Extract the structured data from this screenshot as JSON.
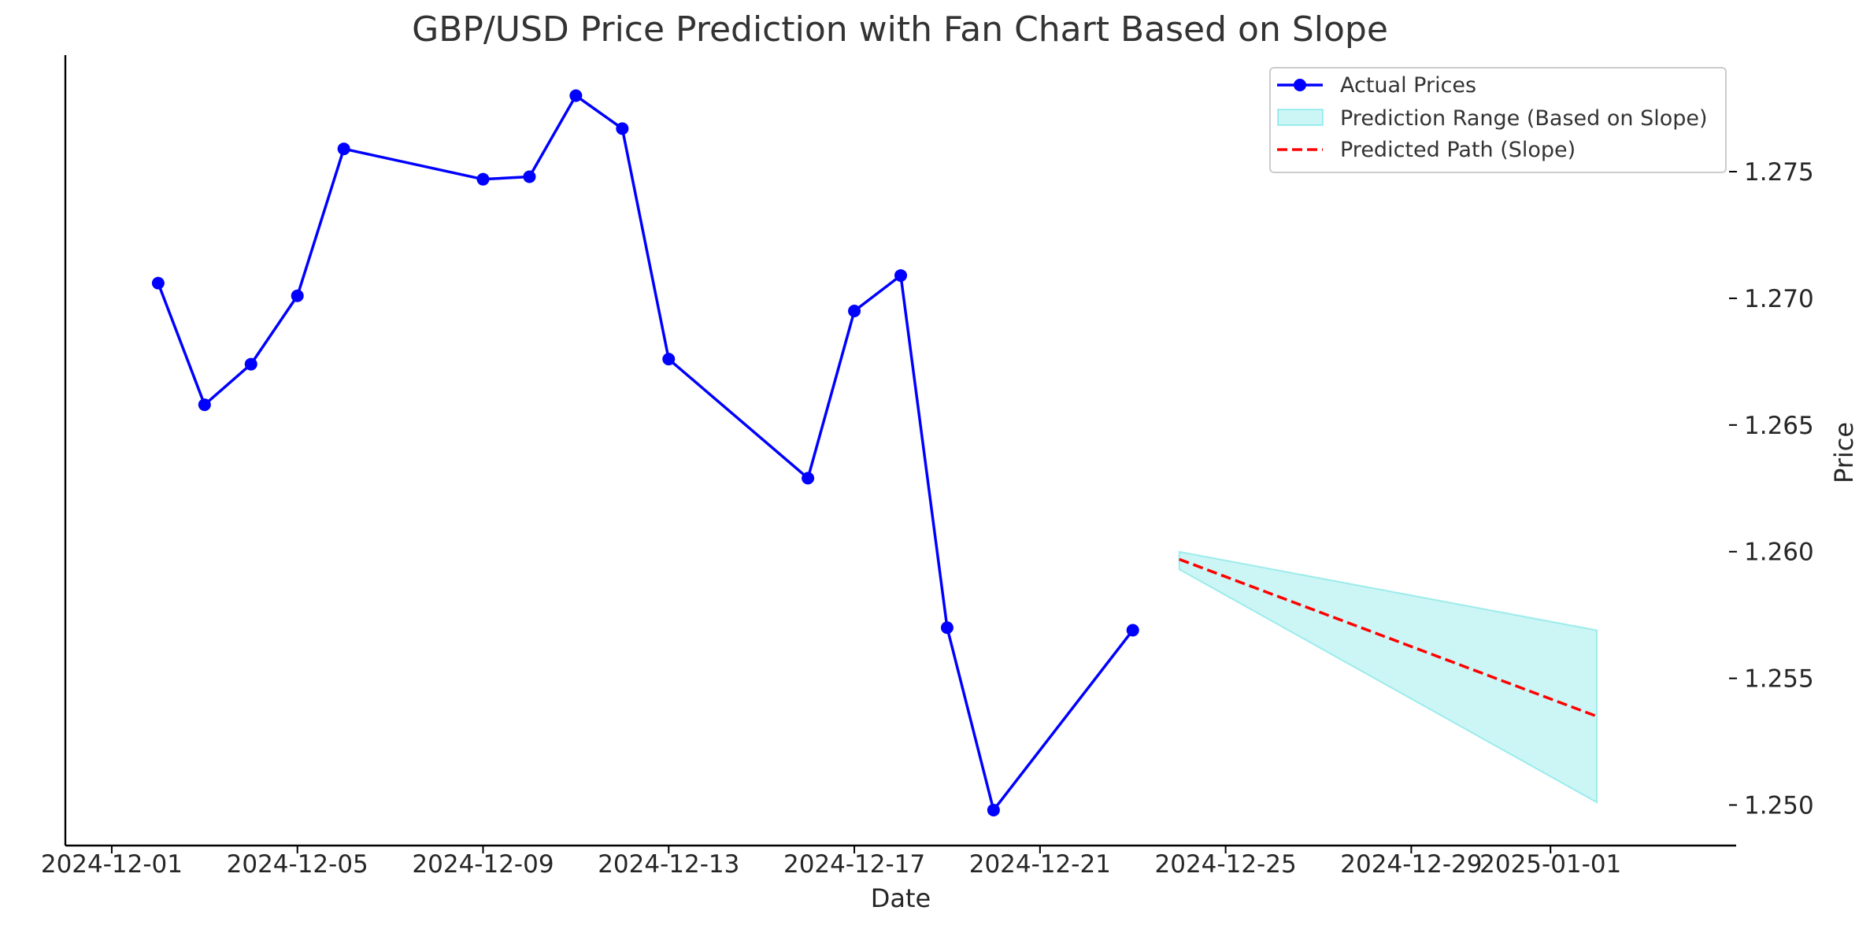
{
  "chart_data": {
    "type": "line",
    "title": "GBP/USD Price Prediction with Fan Chart Based on Slope",
    "xlabel": "Date",
    "ylabel": "Price",
    "x_axis_type": "date",
    "xlim": [
      "2024-11-30",
      "2025-01-05"
    ],
    "ylim": [
      1.2484,
      1.2796
    ],
    "y_axis_side": "right",
    "grid": false,
    "legend_position": "top-right",
    "x_ticks": [
      {
        "date": "2024-12-01",
        "label": "2024-12-01"
      },
      {
        "date": "2024-12-05",
        "label": "2024-12-05"
      },
      {
        "date": "2024-12-09",
        "label": "2024-12-09"
      },
      {
        "date": "2024-12-13",
        "label": "2024-12-13"
      },
      {
        "date": "2024-12-17",
        "label": "2024-12-17"
      },
      {
        "date": "2024-12-21",
        "label": "2024-12-21"
      },
      {
        "date": "2024-12-25",
        "label": "2024-12-25"
      },
      {
        "date": "2024-12-29",
        "label": "2024-12-29"
      },
      {
        "date": "2025-01-01",
        "label": "2025-01-01"
      }
    ],
    "y_ticks": [
      {
        "value": 1.25,
        "label": "1.250"
      },
      {
        "value": 1.255,
        "label": "1.255"
      },
      {
        "value": 1.26,
        "label": "1.260"
      },
      {
        "value": 1.265,
        "label": "1.265"
      },
      {
        "value": 1.27,
        "label": "1.270"
      },
      {
        "value": 1.275,
        "label": "1.275"
      }
    ],
    "series": [
      {
        "name": "Actual Prices",
        "kind": "line-marker",
        "color": "#0000ff",
        "points": [
          {
            "x": "2024-12-02",
            "y": 1.2706
          },
          {
            "x": "2024-12-03",
            "y": 1.2658
          },
          {
            "x": "2024-12-04",
            "y": 1.2674
          },
          {
            "x": "2024-12-05",
            "y": 1.2701
          },
          {
            "x": "2024-12-06",
            "y": 1.2759
          },
          {
            "x": "2024-12-09",
            "y": 1.2747
          },
          {
            "x": "2024-12-10",
            "y": 1.2748
          },
          {
            "x": "2024-12-11",
            "y": 1.278
          },
          {
            "x": "2024-12-12",
            "y": 1.2767
          },
          {
            "x": "2024-12-13",
            "y": 1.2676
          },
          {
            "x": "2024-12-16",
            "y": 1.2629
          },
          {
            "x": "2024-12-17",
            "y": 1.2695
          },
          {
            "x": "2024-12-18",
            "y": 1.2709
          },
          {
            "x": "2024-12-19",
            "y": 1.257
          },
          {
            "x": "2024-12-20",
            "y": 1.2498
          },
          {
            "x": "2024-12-23",
            "y": 1.2569
          }
        ]
      },
      {
        "name": "Prediction Range (Based on Slope)",
        "kind": "band",
        "color": "#00cccc",
        "opacity": 0.2,
        "points": [
          {
            "x": "2024-12-24",
            "lower": 1.2593,
            "upper": 1.26
          },
          {
            "x": "2025-01-02",
            "lower": 1.2501,
            "upper": 1.2569
          }
        ]
      },
      {
        "name": "Predicted Path (Slope)",
        "kind": "dashed-line",
        "color": "#ff0000",
        "points": [
          {
            "x": "2024-12-24",
            "y": 1.2597
          },
          {
            "x": "2025-01-02",
            "y": 1.2535
          }
        ]
      }
    ]
  }
}
